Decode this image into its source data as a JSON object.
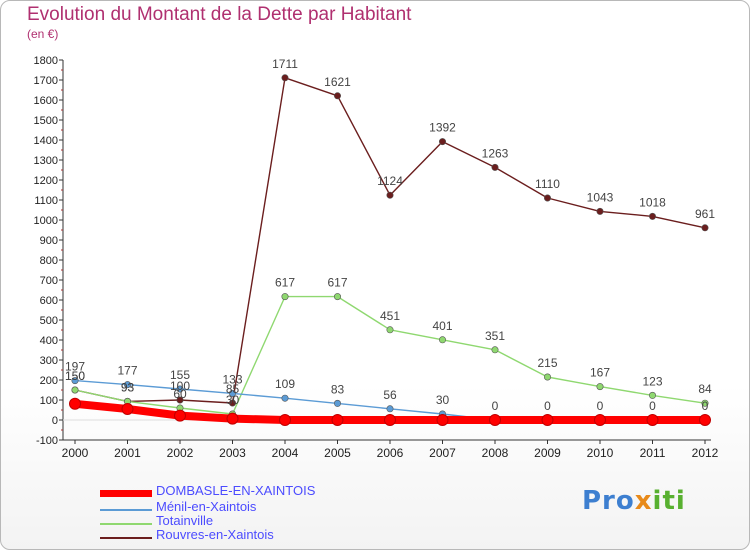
{
  "title": "Evolution du Montant de la Dette par Habitant",
  "unit_label": "(en €)",
  "logo_parts": [
    "Pro",
    "x",
    "iti"
  ],
  "chart_data": {
    "type": "line",
    "title": "Evolution du Montant de la Dette par Habitant",
    "ylabel": "(en €)",
    "xlabel": "",
    "ylim": [
      -100,
      1800
    ],
    "y_ticks": [
      -100,
      0,
      100,
      200,
      300,
      400,
      500,
      600,
      700,
      800,
      900,
      1000,
      1100,
      1200,
      1300,
      1400,
      1500,
      1600,
      1700,
      1800
    ],
    "categories": [
      "2000",
      "2001",
      "2002",
      "2003",
      "2004",
      "2005",
      "2006",
      "2007",
      "2008",
      "2009",
      "2010",
      "2011",
      "2012"
    ],
    "grid": false,
    "legend_position": "bottom-left",
    "series": [
      {
        "name": "Rouvres-en-Xaintois",
        "color": "#6b1e1e",
        "values": [
          150,
          93,
          100,
          85,
          1711,
          1621,
          1124,
          1392,
          1263,
          1110,
          1043,
          1018,
          961
        ]
      },
      {
        "name": "Totainville",
        "color": "#8fd870",
        "values": [
          150,
          93,
          60,
          30,
          617,
          617,
          451,
          401,
          351,
          215,
          167,
          123,
          84
        ]
      },
      {
        "name": "Ménil-en-Xaintois",
        "color": "#5b9bd5",
        "values": [
          197,
          177,
          155,
          133,
          109,
          83,
          56,
          30,
          0,
          0,
          0,
          0,
          0
        ]
      },
      {
        "name": "DOMBASLE-EN-XAINTOIS",
        "color": "#ff0000",
        "values": [
          81,
          55,
          22,
          7,
          0,
          0,
          0,
          0,
          0,
          0,
          0,
          0,
          0
        ]
      }
    ],
    "legend_order": [
      "DOMBASLE-EN-XAINTOIS",
      "Ménil-en-Xaintois",
      "Totainville",
      "Rouvres-en-Xaintois"
    ]
  }
}
